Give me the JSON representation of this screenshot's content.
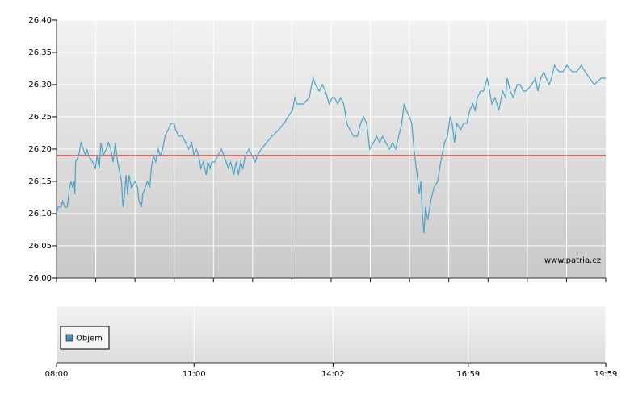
{
  "chart_data": [
    {
      "type": "line",
      "x": [
        "08:00",
        "08:02",
        "08:06",
        "08:08",
        "08:11",
        "08:14",
        "08:17",
        "08:19",
        "08:21",
        "08:23",
        "08:24",
        "08:25",
        "08:29",
        "08:32",
        "08:35",
        "08:38",
        "08:40",
        "08:42",
        "08:47",
        "08:51",
        "08:53",
        "08:56",
        "08:58",
        "09:01",
        "09:05",
        "09:08",
        "09:11",
        "09:14",
        "09:17",
        "09:20",
        "09:25",
        "09:27",
        "09:29",
        "09:31",
        "09:33",
        "09:35",
        "09:38",
        "09:43",
        "09:46",
        "09:48",
        "09:51",
        "09:53",
        "09:56",
        "09:59",
        "10:02",
        "10:04",
        "10:07",
        "10:10",
        "10:13",
        "10:16",
        "10:19",
        "10:22",
        "10:26",
        "10:30",
        "10:34",
        "10:36",
        "10:40",
        "10:45",
        "10:49",
        "10:53",
        "10:57",
        "11:00",
        "11:03",
        "11:06",
        "11:09",
        "11:12",
        "11:16",
        "11:18",
        "11:21",
        "11:23",
        "11:27",
        "11:31",
        "11:36",
        "11:39",
        "11:42",
        "11:45",
        "11:48",
        "11:52",
        "11:55",
        "11:58",
        "12:01",
        "12:04",
        "12:07",
        "12:12",
        "12:16",
        "12:20",
        "12:23",
        "12:28",
        "12:35",
        "12:42",
        "12:51",
        "12:58",
        "13:03",
        "13:09",
        "13:12",
        "13:15",
        "13:23",
        "13:31",
        "13:34",
        "13:36",
        "13:39",
        "13:44",
        "13:48",
        "13:52",
        "13:57",
        "14:01",
        "14:04",
        "14:08",
        "14:12",
        "14:16",
        "14:20",
        "14:24",
        "14:29",
        "14:34",
        "14:38",
        "14:42",
        "14:46",
        "14:50",
        "14:55",
        "14:59",
        "15:03",
        "15:07",
        "15:11",
        "15:16",
        "15:20",
        "15:24",
        "15:28",
        "15:32",
        "15:35",
        "15:38",
        "15:42",
        "15:45",
        "15:48",
        "15:52",
        "15:55",
        "15:57",
        "15:59",
        "16:01",
        "16:03",
        "16:06",
        "16:10",
        "16:14",
        "16:19",
        "16:23",
        "16:28",
        "16:32",
        "16:35",
        "16:38",
        "16:41",
        "16:44",
        "16:49",
        "16:53",
        "16:57",
        "17:01",
        "17:05",
        "17:08",
        "17:11",
        "17:15",
        "17:19",
        "17:24",
        "17:27",
        "17:30",
        "17:34",
        "17:39",
        "17:44",
        "17:48",
        "17:50",
        "17:54",
        "17:58",
        "18:03",
        "18:07",
        "18:11",
        "18:15",
        "18:22",
        "18:27",
        "18:30",
        "18:34",
        "18:38",
        "18:41",
        "18:45",
        "18:48",
        "18:52",
        "18:58",
        "19:03",
        "19:08",
        "19:15",
        "19:21",
        "19:27",
        "19:32",
        "19:38",
        "19:44",
        "19:53",
        "19:59"
      ],
      "values": [
        26.1,
        26.11,
        26.11,
        26.12,
        26.11,
        26.11,
        26.14,
        26.15,
        26.14,
        26.15,
        26.13,
        26.18,
        26.19,
        26.21,
        26.2,
        26.19,
        26.2,
        26.19,
        26.18,
        26.17,
        26.19,
        26.17,
        26.21,
        26.19,
        26.2,
        26.21,
        26.2,
        26.18,
        26.21,
        26.18,
        26.15,
        26.11,
        26.13,
        26.16,
        26.13,
        26.16,
        26.14,
        26.15,
        26.14,
        26.12,
        26.11,
        26.13,
        26.14,
        26.15,
        26.14,
        26.17,
        26.19,
        26.18,
        26.2,
        26.19,
        26.2,
        26.22,
        26.23,
        26.24,
        26.24,
        26.23,
        26.22,
        26.22,
        26.21,
        26.2,
        26.21,
        26.19,
        26.2,
        26.19,
        26.17,
        26.18,
        26.16,
        26.18,
        26.17,
        26.18,
        26.18,
        26.19,
        26.2,
        26.19,
        26.18,
        26.17,
        26.18,
        26.16,
        26.18,
        26.16,
        26.18,
        26.17,
        26.19,
        26.2,
        26.19,
        26.18,
        26.19,
        26.2,
        26.21,
        26.22,
        26.23,
        26.24,
        26.25,
        26.26,
        26.28,
        26.27,
        26.27,
        26.28,
        26.3,
        26.31,
        26.3,
        26.29,
        26.3,
        26.29,
        26.27,
        26.28,
        26.28,
        26.27,
        26.28,
        26.27,
        26.24,
        26.23,
        26.22,
        26.22,
        26.24,
        26.25,
        26.24,
        26.2,
        26.21,
        26.22,
        26.21,
        26.22,
        26.21,
        26.2,
        26.21,
        26.2,
        26.22,
        26.24,
        26.27,
        26.26,
        26.25,
        26.24,
        26.2,
        26.16,
        26.13,
        26.15,
        26.1,
        26.07,
        26.11,
        26.09,
        26.12,
        26.14,
        26.15,
        26.18,
        26.21,
        26.22,
        26.25,
        26.24,
        26.21,
        26.24,
        26.23,
        26.24,
        26.24,
        26.26,
        26.27,
        26.26,
        26.28,
        26.29,
        26.29,
        26.31,
        26.29,
        26.27,
        26.28,
        26.26,
        26.29,
        26.28,
        26.31,
        26.29,
        26.28,
        26.3,
        26.3,
        26.29,
        26.29,
        26.3,
        26.31,
        26.29,
        26.31,
        26.32,
        26.31,
        26.3,
        26.31,
        26.33,
        26.32,
        26.32,
        26.33,
        26.32,
        26.32,
        26.33,
        26.32,
        26.31,
        26.3,
        26.31,
        26.31
      ],
      "color": "#4aa3c8",
      "xlim": [
        "08:00",
        "19:59"
      ],
      "ylim": [
        26.0,
        26.4
      ],
      "yticks": [
        {
          "value": 26.0,
          "label": "26.00"
        },
        {
          "value": 26.05,
          "label": "26,05"
        },
        {
          "value": 26.1,
          "label": "26,10"
        },
        {
          "value": 26.15,
          "label": "26,15"
        },
        {
          "value": 26.2,
          "label": "26,20"
        },
        {
          "value": 26.25,
          "label": "26,25"
        },
        {
          "value": 26.3,
          "label": "26,30"
        },
        {
          "value": 26.35,
          "label": "26,35"
        },
        {
          "value": 26.4,
          "label": "26,40"
        }
      ],
      "reference_line": {
        "value": 26.19,
        "color": "#cc0000"
      },
      "annotation": "www.patria.cz",
      "grid": true
    },
    {
      "type": "bar",
      "series": [
        {
          "name": "Objem",
          "color": "#4a90c0"
        }
      ],
      "xlim": [
        "08:00",
        "19:59"
      ],
      "xticks": [
        "08:00",
        "11:00",
        "14:02",
        "16:59",
        "19:59"
      ],
      "legend": "upper left",
      "grid": true
    }
  ]
}
